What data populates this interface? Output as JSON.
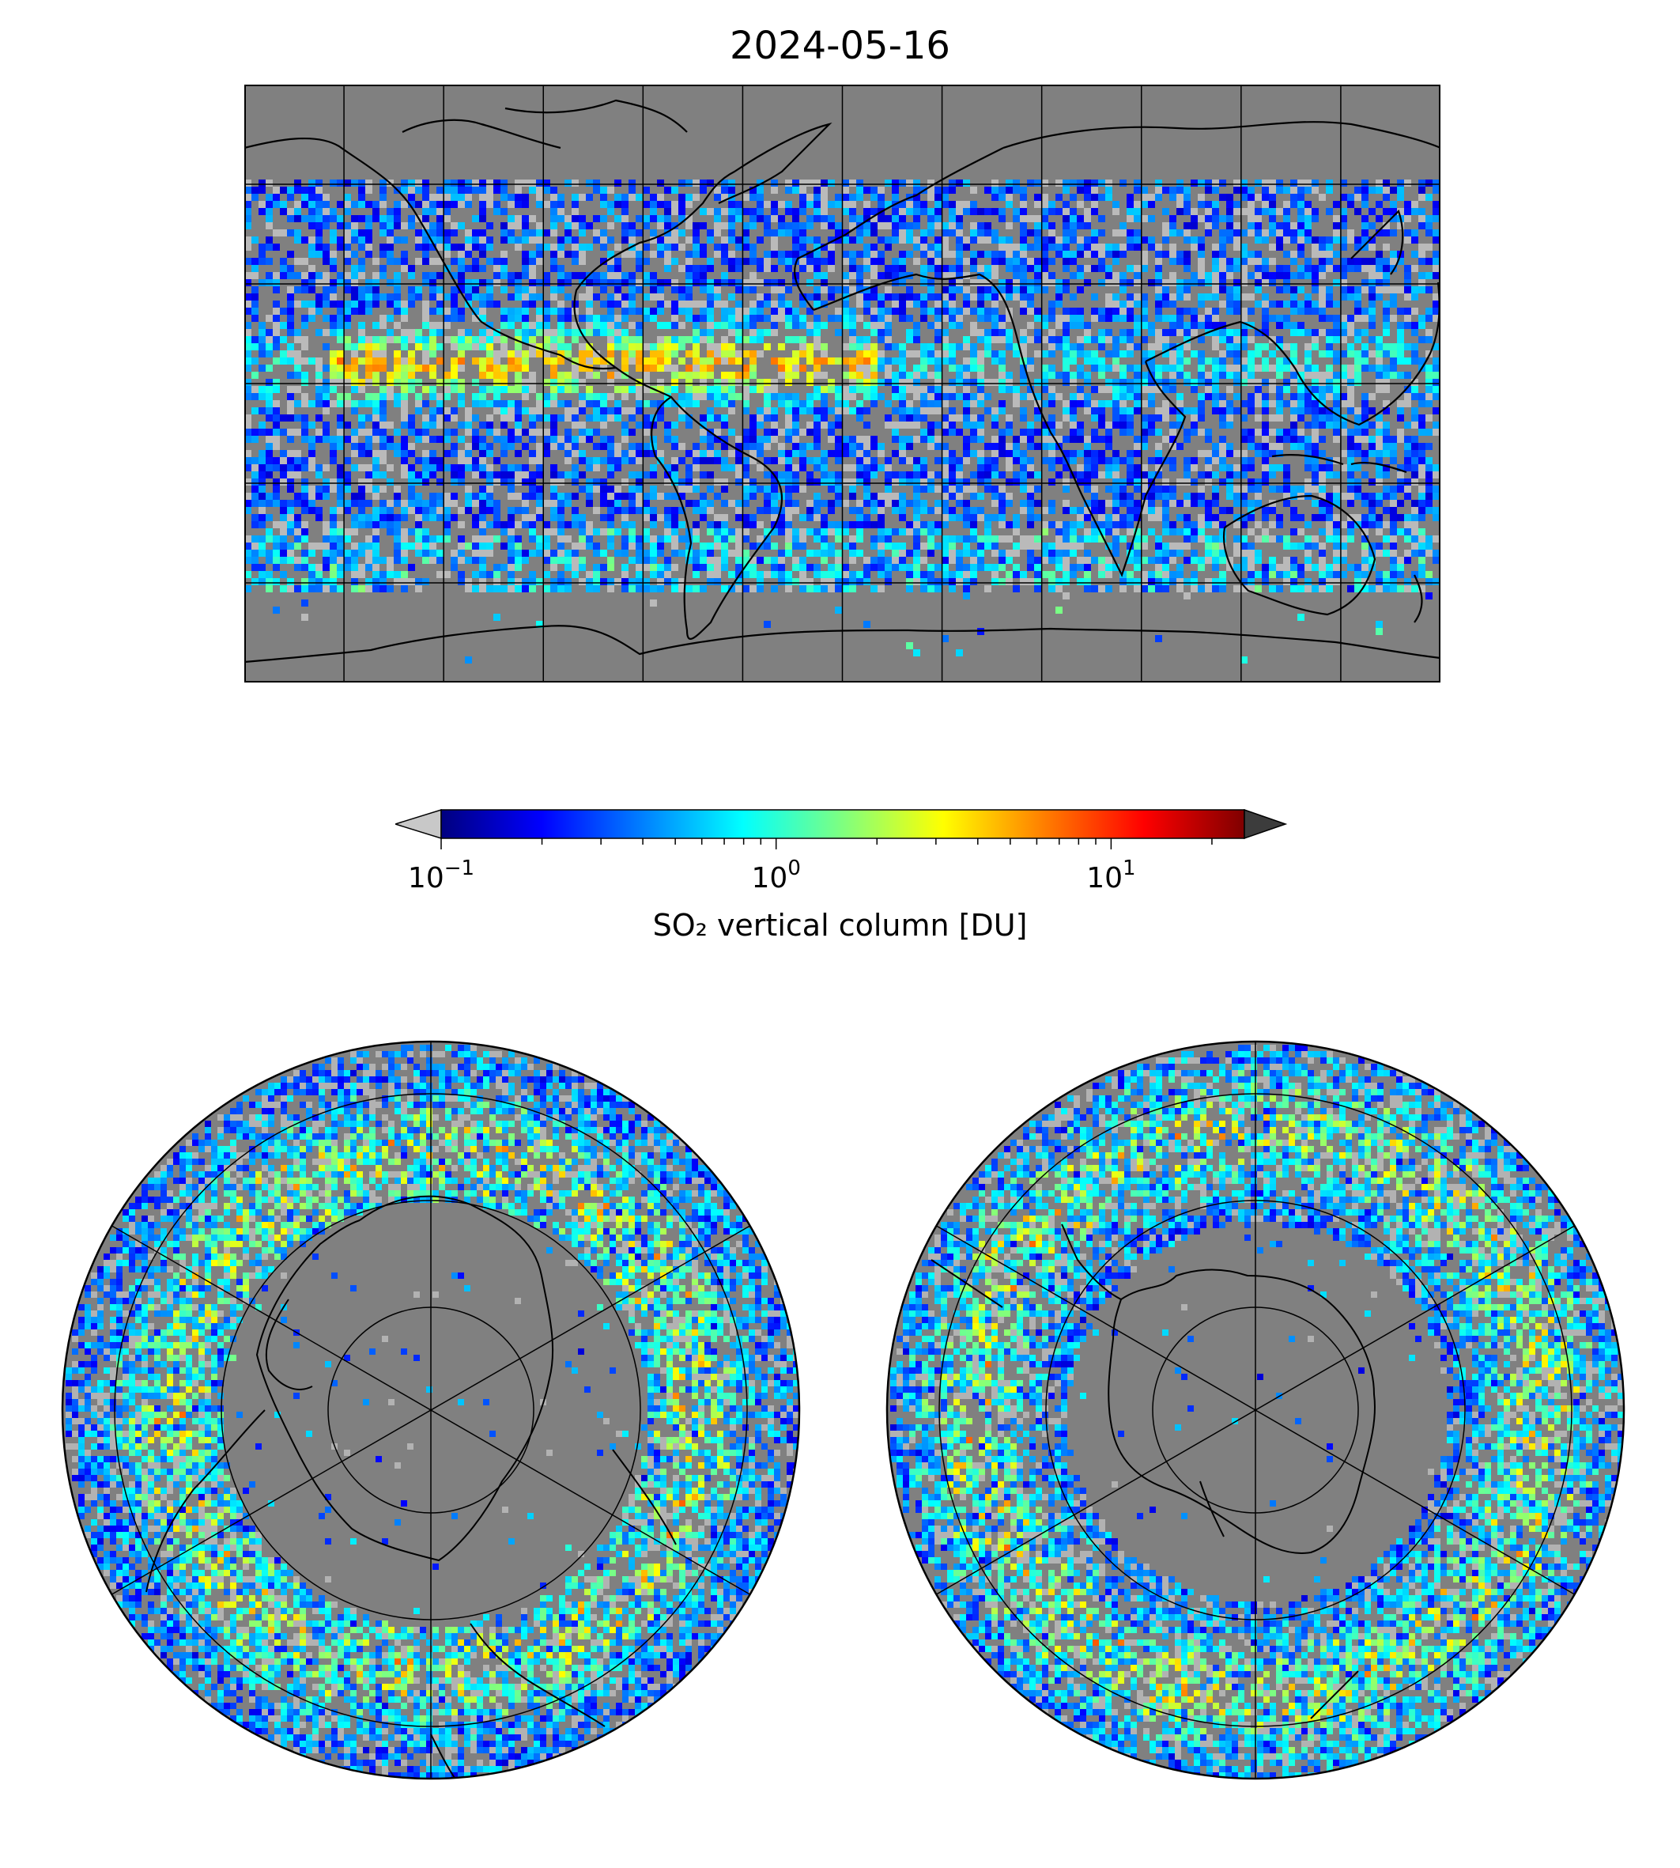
{
  "title": "2024-05-16",
  "colorbar": {
    "label": "SO₂ vertical column [DU]",
    "scale": "log",
    "range": [
      0.1,
      25
    ],
    "ticks": [
      {
        "value": 0.1,
        "base": "10",
        "exp": "−1"
      },
      {
        "value": 1,
        "base": "10",
        "exp": "0"
      },
      {
        "value": 10,
        "base": "10",
        "exp": "1"
      }
    ],
    "colormap": "jet",
    "colormap_stops": [
      "#00007f",
      "#0000ff",
      "#007fff",
      "#00ffff",
      "#7fff7f",
      "#ffff00",
      "#ff7f00",
      "#ff0000",
      "#7f0000"
    ],
    "under_color": "#c8c8c8",
    "over_color": "#3c3c3c"
  },
  "colors": {
    "no_data": "#808080",
    "coastline": "#000000",
    "gridline": "#000000",
    "background": "#ffffff"
  },
  "maps": [
    {
      "name": "global",
      "projection": "plate-carree",
      "lon_gridlines_every_deg": 30,
      "lat_gridlines_every_deg": 30
    },
    {
      "name": "north-polar",
      "projection": "north-polar-stereographic",
      "lat_circles_deg": [
        80,
        60,
        40,
        20
      ],
      "meridians_every_deg": 60
    },
    {
      "name": "south-polar",
      "projection": "south-polar-stereographic",
      "lat_circles_deg": [
        -80,
        -60,
        -40,
        -20
      ],
      "meridians_every_deg": 60
    }
  ]
}
